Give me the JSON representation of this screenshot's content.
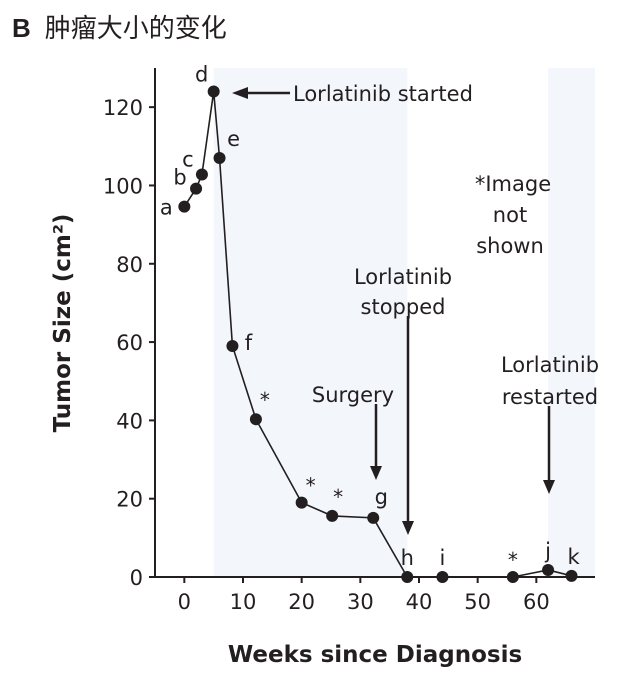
{
  "panel_label": "B",
  "title": "肿瘤大小的变化",
  "chart_data": {
    "type": "line",
    "title": "肿瘤大小的变化",
    "xlabel": "Weeks since Diagnosis",
    "ylabel": "Tumor Size (cm²)",
    "xlim": [
      -5,
      70
    ],
    "ylim": [
      0,
      130
    ],
    "xticks": [
      0,
      10,
      20,
      30,
      40,
      50,
      60
    ],
    "yticks": [
      0,
      20,
      40,
      60,
      80,
      100,
      120
    ],
    "grid": false,
    "colors": {
      "line": "#231f20",
      "shade": "#f3f6fb"
    },
    "shaded_periods": [
      {
        "start": 5,
        "end": 38
      },
      {
        "start": 62,
        "end": 70
      }
    ],
    "points": [
      {
        "label": "a",
        "x": 0,
        "y": 94.6
      },
      {
        "label": "b",
        "x": 2,
        "y": 99.2
      },
      {
        "label": "c",
        "x": 3,
        "y": 102.8
      },
      {
        "label": "d",
        "x": 5,
        "y": 124
      },
      {
        "label": "e",
        "x": 6,
        "y": 107
      },
      {
        "label": "f",
        "x": 8.2,
        "y": 59
      },
      {
        "label": "*",
        "x": 12.2,
        "y": 40.3
      },
      {
        "label": "*",
        "x": 20,
        "y": 19
      },
      {
        "label": "*",
        "x": 25.2,
        "y": 15.6
      },
      {
        "label": "g",
        "x": 32.2,
        "y": 15.1
      },
      {
        "label": "h",
        "x": 38,
        "y": 0
      },
      {
        "label": "i",
        "x": 44,
        "y": 0
      },
      {
        "label": "*",
        "x": 56,
        "y": 0
      },
      {
        "label": "j",
        "x": 62,
        "y": 1.8
      },
      {
        "label": "k",
        "x": 66,
        "y": 0.3
      }
    ],
    "annotations": {
      "started": "Lorlatinib started",
      "stopped": [
        "Lorlatinib",
        "stopped"
      ],
      "surgery": "Surgery",
      "restarted": [
        "Lorlatinib",
        "restarted"
      ],
      "note": [
        "*Image",
        "not",
        "shown"
      ]
    }
  }
}
